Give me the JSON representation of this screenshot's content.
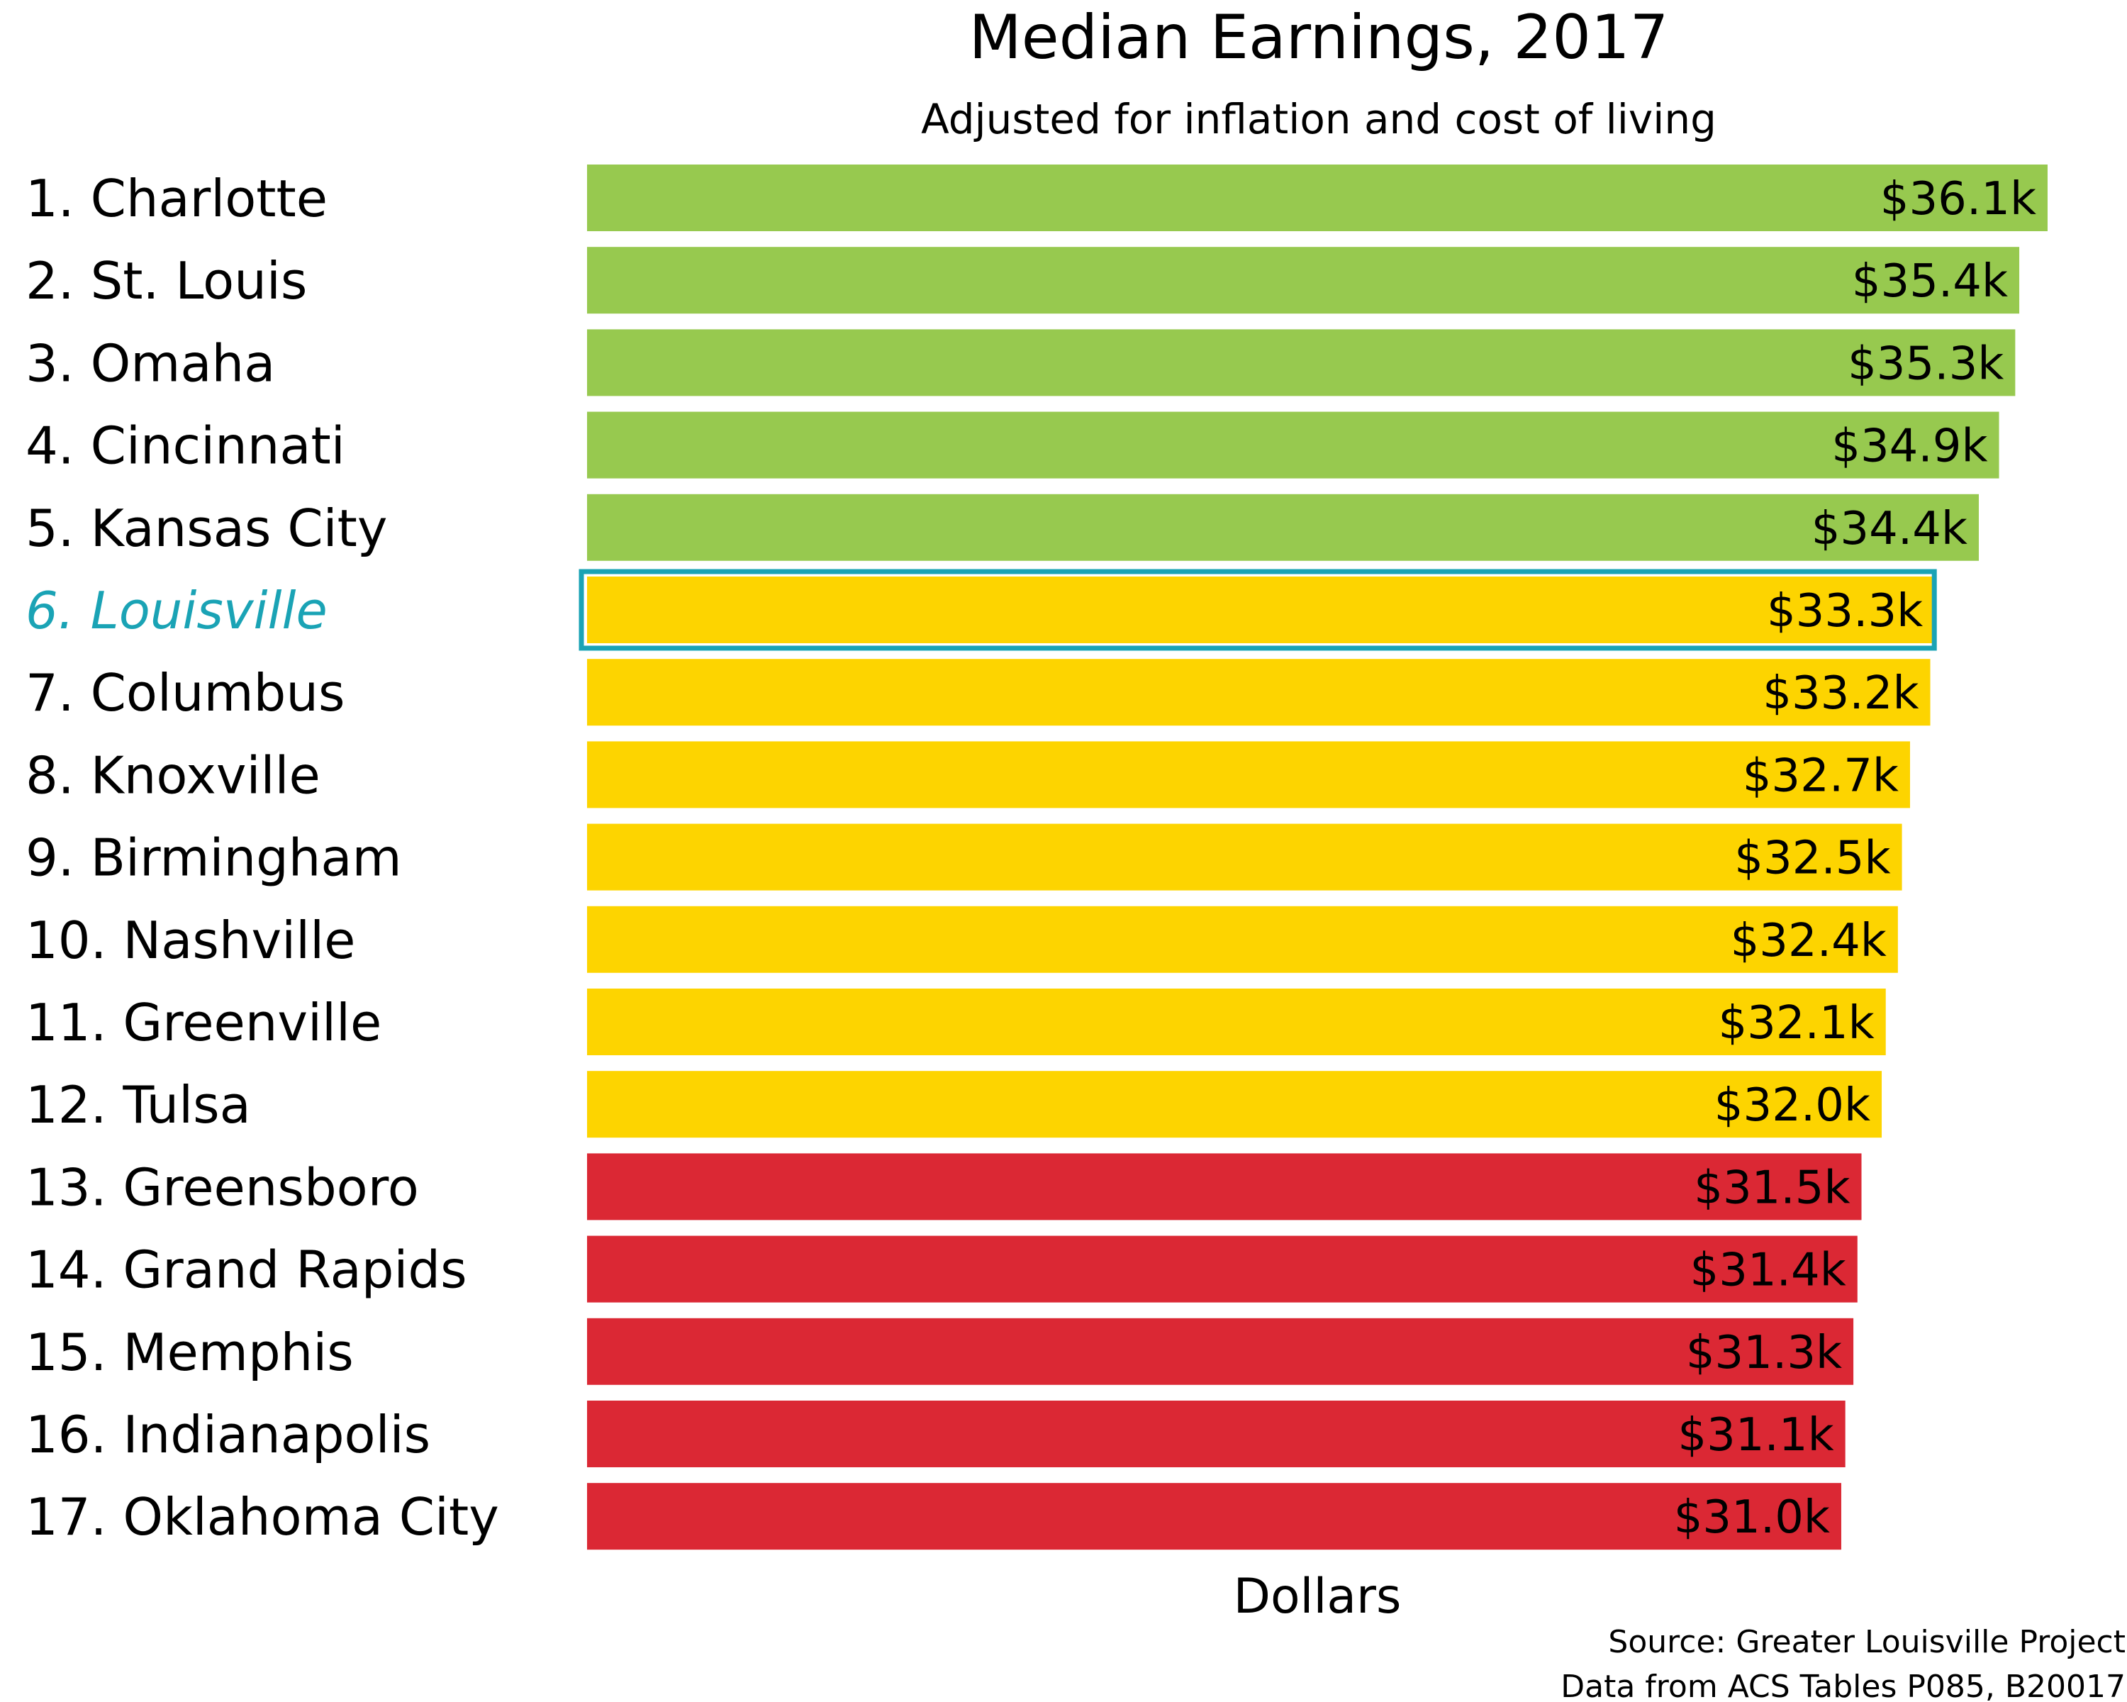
{
  "chart_data": {
    "type": "bar",
    "orientation": "horizontal",
    "title": "Median Earnings, 2017",
    "subtitle": "Adjusted for inflation and cost of living",
    "xlabel": "Dollars",
    "ylabel": "",
    "xlim": [
      0,
      36.1
    ],
    "grid": false,
    "legend": "none",
    "categories": [
      "1. Charlotte",
      "2. St. Louis",
      "3. Omaha",
      "4. Cincinnati",
      "5. Kansas City",
      "6. Louisville",
      "7. Columbus",
      "8. Knoxville",
      "9. Birmingham",
      "10. Nashville",
      "11. Greenville",
      "12. Tulsa",
      "13. Greensboro",
      "14. Grand Rapids",
      "15. Memphis",
      "16. Indianapolis",
      "17. Oklahoma City"
    ],
    "values": [
      36.1,
      35.4,
      35.3,
      34.9,
      34.4,
      33.3,
      33.2,
      32.7,
      32.5,
      32.4,
      32.1,
      32.0,
      31.5,
      31.4,
      31.3,
      31.1,
      31.0
    ],
    "value_labels": [
      "$36.1k",
      "$35.4k",
      "$35.3k",
      "$34.9k",
      "$34.4k",
      "$33.3k",
      "$33.2k",
      "$32.7k",
      "$32.5k",
      "$32.4k",
      "$32.1k",
      "$32.0k",
      "$31.5k",
      "$31.4k",
      "$31.3k",
      "$31.1k",
      "$31.0k"
    ],
    "tiers": [
      "top",
      "top",
      "top",
      "top",
      "top",
      "middle",
      "middle",
      "middle",
      "middle",
      "middle",
      "middle",
      "middle",
      "bottom",
      "bottom",
      "bottom",
      "bottom",
      "bottom"
    ],
    "tier_colors": {
      "top": "#97c94f",
      "middle": "#fdd400",
      "bottom": "#db2834"
    },
    "highlight_index": 5,
    "highlight_color": "#1aa3b5"
  },
  "source": {
    "line1": "Source: Greater Louisville Project",
    "line2": "Data from ACS Tables P085, B20017"
  }
}
